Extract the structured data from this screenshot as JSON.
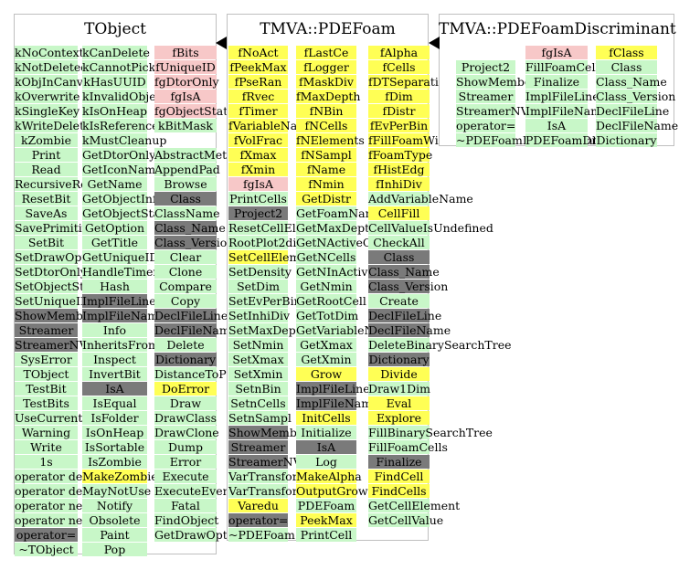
{
  "colors": {
    "green": "#c8f7c8",
    "yellow": "#ffff55",
    "pink": "#f7c8c8",
    "gray": "#7a7a7a",
    "border": "#bfbfbf"
  },
  "classes": [
    {
      "name": "TObject",
      "columns": [
        [
          {
            "t": "kNoContextMenu",
            "c": "green"
          },
          {
            "t": "kNotDeleted",
            "c": "green"
          },
          {
            "t": "kObjInCanvas",
            "c": "green"
          },
          {
            "t": "kOverwrite",
            "c": "green"
          },
          {
            "t": "kSingleKey",
            "c": "green"
          },
          {
            "t": "kWriteDelete",
            "c": "green"
          },
          {
            "t": "kZombie",
            "c": "green"
          },
          {
            "t": "Print",
            "c": "green"
          },
          {
            "t": "Read",
            "c": "green"
          },
          {
            "t": "RecursiveRemove",
            "c": "green"
          },
          {
            "t": "ResetBit",
            "c": "green"
          },
          {
            "t": "SaveAs",
            "c": "green"
          },
          {
            "t": "SavePrimitive",
            "c": "green"
          },
          {
            "t": "SetBit",
            "c": "green"
          },
          {
            "t": "SetDrawOption",
            "c": "green"
          },
          {
            "t": "SetDtorOnly",
            "c": "green"
          },
          {
            "t": "SetObjectStat",
            "c": "green"
          },
          {
            "t": "SetUniqueID",
            "c": "green"
          },
          {
            "t": "ShowMembers",
            "c": "gray"
          },
          {
            "t": "Streamer",
            "c": "gray"
          },
          {
            "t": "StreamerNVirtual",
            "c": "gray"
          },
          {
            "t": "SysError",
            "c": "green"
          },
          {
            "t": "TObject",
            "c": "green"
          },
          {
            "t": "TestBit",
            "c": "green"
          },
          {
            "t": "TestBits",
            "c": "green"
          },
          {
            "t": "UseCurrentStyle",
            "c": "green"
          },
          {
            "t": "Warning",
            "c": "green"
          },
          {
            "t": "Write",
            "c": "green"
          },
          {
            "t": "1s",
            "c": "green"
          },
          {
            "t": "operator delete",
            "c": "green"
          },
          {
            "t": "operator delete[]",
            "c": "green"
          },
          {
            "t": "operator new",
            "c": "green"
          },
          {
            "t": "operator new[]",
            "c": "green"
          },
          {
            "t": "operator=",
            "c": "gray"
          },
          {
            "t": "~TObject",
            "c": "green"
          }
        ],
        [
          {
            "t": "kCanDelete",
            "c": "green"
          },
          {
            "t": "kCannotPick",
            "c": "green"
          },
          {
            "t": "kHasUUID",
            "c": "green"
          },
          {
            "t": "kInvalidObject",
            "c": "green"
          },
          {
            "t": "kIsOnHeap",
            "c": "green"
          },
          {
            "t": "kIsReferenced",
            "c": "green"
          },
          {
            "t": "kMustCleanup",
            "c": "green"
          },
          {
            "t": "GetDtorOnly",
            "c": "green"
          },
          {
            "t": "GetIconName",
            "c": "green"
          },
          {
            "t": "GetName",
            "c": "green"
          },
          {
            "t": "GetObjectInfo",
            "c": "green"
          },
          {
            "t": "GetObjectStat",
            "c": "green"
          },
          {
            "t": "GetOption",
            "c": "green"
          },
          {
            "t": "GetTitle",
            "c": "green"
          },
          {
            "t": "GetUniqueID",
            "c": "green"
          },
          {
            "t": "HandleTimer",
            "c": "green"
          },
          {
            "t": "Hash",
            "c": "green"
          },
          {
            "t": "ImplFileLine",
            "c": "gray"
          },
          {
            "t": "ImplFileName",
            "c": "gray"
          },
          {
            "t": "Info",
            "c": "green"
          },
          {
            "t": "InheritsFrom",
            "c": "green"
          },
          {
            "t": "Inspect",
            "c": "green"
          },
          {
            "t": "InvertBit",
            "c": "green"
          },
          {
            "t": "IsA",
            "c": "gray"
          },
          {
            "t": "IsEqual",
            "c": "green"
          },
          {
            "t": "IsFolder",
            "c": "green"
          },
          {
            "t": "IsOnHeap",
            "c": "green"
          },
          {
            "t": "IsSortable",
            "c": "green"
          },
          {
            "t": "IsZombie",
            "c": "green"
          },
          {
            "t": "MakeZombie",
            "c": "yellow"
          },
          {
            "t": "MayNotUse",
            "c": "green"
          },
          {
            "t": "Notify",
            "c": "green"
          },
          {
            "t": "Obsolete",
            "c": "green"
          },
          {
            "t": "Paint",
            "c": "green"
          },
          {
            "t": "Pop",
            "c": "green"
          }
        ],
        [
          {
            "t": "fBits",
            "c": "pink"
          },
          {
            "t": "fUniqueID",
            "c": "pink"
          },
          {
            "t": "fgDtorOnly",
            "c": "pink"
          },
          {
            "t": "fgIsA",
            "c": "pink"
          },
          {
            "t": "fgObjectStat",
            "c": "pink"
          },
          {
            "t": "kBitMask",
            "c": "green"
          },
          {
            "t": "",
            "c": "none"
          },
          {
            "t": "AbstractMethod",
            "c": "green"
          },
          {
            "t": "AppendPad",
            "c": "green"
          },
          {
            "t": "Browse",
            "c": "green"
          },
          {
            "t": "Class",
            "c": "gray"
          },
          {
            "t": "ClassName",
            "c": "green"
          },
          {
            "t": "Class_Name",
            "c": "gray"
          },
          {
            "t": "Class_Version",
            "c": "gray"
          },
          {
            "t": "Clear",
            "c": "green"
          },
          {
            "t": "Clone",
            "c": "green"
          },
          {
            "t": "Compare",
            "c": "green"
          },
          {
            "t": "Copy",
            "c": "green"
          },
          {
            "t": "DeclFileLine",
            "c": "gray"
          },
          {
            "t": "DeclFileName",
            "c": "gray"
          },
          {
            "t": "Delete",
            "c": "green"
          },
          {
            "t": "Dictionary",
            "c": "gray"
          },
          {
            "t": "DistanceToPrimitive",
            "c": "green"
          },
          {
            "t": "DoError",
            "c": "yellow"
          },
          {
            "t": "Draw",
            "c": "green"
          },
          {
            "t": "DrawClass",
            "c": "green"
          },
          {
            "t": "DrawClone",
            "c": "green"
          },
          {
            "t": "Dump",
            "c": "green"
          },
          {
            "t": "Error",
            "c": "green"
          },
          {
            "t": "Execute",
            "c": "green"
          },
          {
            "t": "ExecuteEvent",
            "c": "green"
          },
          {
            "t": "Fatal",
            "c": "green"
          },
          {
            "t": "FindObject",
            "c": "green"
          },
          {
            "t": "GetDrawOption",
            "c": "green"
          }
        ]
      ]
    },
    {
      "name": "TMVA::PDEFoam",
      "columns": [
        [
          {
            "t": "fNoAct",
            "c": "yellow"
          },
          {
            "t": "fPeekMax",
            "c": "yellow"
          },
          {
            "t": "fPseRan",
            "c": "yellow"
          },
          {
            "t": "fRvec",
            "c": "yellow"
          },
          {
            "t": "fTimer",
            "c": "yellow"
          },
          {
            "t": "fVariableNames",
            "c": "yellow"
          },
          {
            "t": "fVolFrac",
            "c": "yellow"
          },
          {
            "t": "fXmax",
            "c": "yellow"
          },
          {
            "t": "fXmin",
            "c": "yellow"
          },
          {
            "t": "fgIsA",
            "c": "pink"
          },
          {
            "t": "PrintCells",
            "c": "green"
          },
          {
            "t": "Project2",
            "c": "gray"
          },
          {
            "t": "ResetCellElements",
            "c": "green"
          },
          {
            "t": "RootPlot2dim",
            "c": "green"
          },
          {
            "t": "SetCellElement",
            "c": "yellow"
          },
          {
            "t": "SetDensity",
            "c": "green"
          },
          {
            "t": "SetDim",
            "c": "green"
          },
          {
            "t": "SetEvPerBin",
            "c": "green"
          },
          {
            "t": "SetInhiDiv",
            "c": "green"
          },
          {
            "t": "SetMaxDepth",
            "c": "green"
          },
          {
            "t": "SetNmin",
            "c": "green"
          },
          {
            "t": "SetXmax",
            "c": "green"
          },
          {
            "t": "SetXmin",
            "c": "green"
          },
          {
            "t": "SetnBin",
            "c": "green"
          },
          {
            "t": "SetnCells",
            "c": "green"
          },
          {
            "t": "SetnSampl",
            "c": "green"
          },
          {
            "t": "ShowMembers",
            "c": "gray"
          },
          {
            "t": "Streamer",
            "c": "gray"
          },
          {
            "t": "StreamerNVirtual",
            "c": "gray"
          },
          {
            "t": "VarTransform",
            "c": "green"
          },
          {
            "t": "VarTransformInvers",
            "c": "green"
          },
          {
            "t": "Varedu",
            "c": "yellow"
          },
          {
            "t": "operator=",
            "c": "gray"
          },
          {
            "t": "~PDEFoam",
            "c": "green"
          }
        ],
        [
          {
            "t": "fLastCe",
            "c": "yellow"
          },
          {
            "t": "fLogger",
            "c": "yellow"
          },
          {
            "t": "fMaskDiv",
            "c": "yellow"
          },
          {
            "t": "fMaxDepth",
            "c": "yellow"
          },
          {
            "t": "fNBin",
            "c": "yellow"
          },
          {
            "t": "fNCells",
            "c": "yellow"
          },
          {
            "t": "fNElements",
            "c": "yellow"
          },
          {
            "t": "fNSampl",
            "c": "yellow"
          },
          {
            "t": "fName",
            "c": "yellow"
          },
          {
            "t": "fNmin",
            "c": "yellow"
          },
          {
            "t": "GetDistr",
            "c": "yellow"
          },
          {
            "t": "GetFoamName",
            "c": "green"
          },
          {
            "t": "GetMaxDepth",
            "c": "green"
          },
          {
            "t": "GetNActiveCells",
            "c": "green"
          },
          {
            "t": "GetNCells",
            "c": "green"
          },
          {
            "t": "GetNInActiveCells",
            "c": "green"
          },
          {
            "t": "GetNmin",
            "c": "green"
          },
          {
            "t": "GetRootCell",
            "c": "green"
          },
          {
            "t": "GetTotDim",
            "c": "green"
          },
          {
            "t": "GetVariableName",
            "c": "green"
          },
          {
            "t": "GetXmax",
            "c": "green"
          },
          {
            "t": "GetXmin",
            "c": "green"
          },
          {
            "t": "Grow",
            "c": "yellow"
          },
          {
            "t": "ImplFileLine",
            "c": "gray"
          },
          {
            "t": "ImplFileName",
            "c": "gray"
          },
          {
            "t": "InitCells",
            "c": "yellow"
          },
          {
            "t": "Initialize",
            "c": "green"
          },
          {
            "t": "IsA",
            "c": "gray"
          },
          {
            "t": "Log",
            "c": "green"
          },
          {
            "t": "MakeAlpha",
            "c": "yellow"
          },
          {
            "t": "OutputGrow",
            "c": "yellow"
          },
          {
            "t": "PDEFoam",
            "c": "green"
          },
          {
            "t": "PeekMax",
            "c": "yellow"
          },
          {
            "t": "PrintCell",
            "c": "green"
          }
        ],
        [
          {
            "t": "fAlpha",
            "c": "yellow"
          },
          {
            "t": "fCells",
            "c": "yellow"
          },
          {
            "t": "fDTSeparation",
            "c": "yellow"
          },
          {
            "t": "fDim",
            "c": "yellow"
          },
          {
            "t": "fDistr",
            "c": "yellow"
          },
          {
            "t": "fEvPerBin",
            "c": "yellow"
          },
          {
            "t": "fFillFoamWithOrigWeights",
            "c": "yellow"
          },
          {
            "t": "fFoamType",
            "c": "yellow"
          },
          {
            "t": "fHistEdg",
            "c": "yellow"
          },
          {
            "t": "fInhiDiv",
            "c": "yellow"
          },
          {
            "t": "AddVariableName",
            "c": "green"
          },
          {
            "t": "CellFill",
            "c": "yellow"
          },
          {
            "t": "CellValueIsUndefined",
            "c": "green"
          },
          {
            "t": "CheckAll",
            "c": "green"
          },
          {
            "t": "Class",
            "c": "gray"
          },
          {
            "t": "Class_Name",
            "c": "gray"
          },
          {
            "t": "Class_Version",
            "c": "gray"
          },
          {
            "t": "Create",
            "c": "green"
          },
          {
            "t": "DeclFileLine",
            "c": "gray"
          },
          {
            "t": "DeclFileName",
            "c": "gray"
          },
          {
            "t": "DeleteBinarySearchTree",
            "c": "green"
          },
          {
            "t": "Dictionary",
            "c": "gray"
          },
          {
            "t": "Divide",
            "c": "yellow"
          },
          {
            "t": "Draw1Dim",
            "c": "green"
          },
          {
            "t": "Eval",
            "c": "yellow"
          },
          {
            "t": "Explore",
            "c": "yellow"
          },
          {
            "t": "FillBinarySearchTree",
            "c": "green"
          },
          {
            "t": "FillFoamCells",
            "c": "green"
          },
          {
            "t": "Finalize",
            "c": "gray"
          },
          {
            "t": "FindCell",
            "c": "yellow"
          },
          {
            "t": "FindCells",
            "c": "yellow"
          },
          {
            "t": "GetCellElement",
            "c": "green"
          },
          {
            "t": "GetCellValue",
            "c": "green"
          }
        ]
      ]
    },
    {
      "name": "TMVA::PDEFoamDiscriminant",
      "columns": [
        [
          {
            "t": "",
            "c": "none"
          },
          {
            "t": "Project2",
            "c": "green"
          },
          {
            "t": "ShowMembers",
            "c": "green"
          },
          {
            "t": "Streamer",
            "c": "green"
          },
          {
            "t": "StreamerNVirtual",
            "c": "green"
          },
          {
            "t": "operator=",
            "c": "green"
          },
          {
            "t": "~PDEFoamDiscriminant",
            "c": "green"
          }
        ],
        [
          {
            "t": "fgIsA",
            "c": "pink"
          },
          {
            "t": "FillFoamCells",
            "c": "green"
          },
          {
            "t": "Finalize",
            "c": "green"
          },
          {
            "t": "ImplFileLine",
            "c": "green"
          },
          {
            "t": "ImplFileName",
            "c": "green"
          },
          {
            "t": "IsA",
            "c": "green"
          },
          {
            "t": "PDEFoamDiscriminant",
            "c": "green"
          }
        ],
        [
          {
            "t": "fClass",
            "c": "yellow"
          },
          {
            "t": "Class",
            "c": "green"
          },
          {
            "t": "Class_Name",
            "c": "green"
          },
          {
            "t": "Class_Version",
            "c": "green"
          },
          {
            "t": "DeclFileLine",
            "c": "green"
          },
          {
            "t": "DeclFileName",
            "c": "green"
          },
          {
            "t": "Dictionary",
            "c": "green"
          }
        ]
      ]
    }
  ]
}
